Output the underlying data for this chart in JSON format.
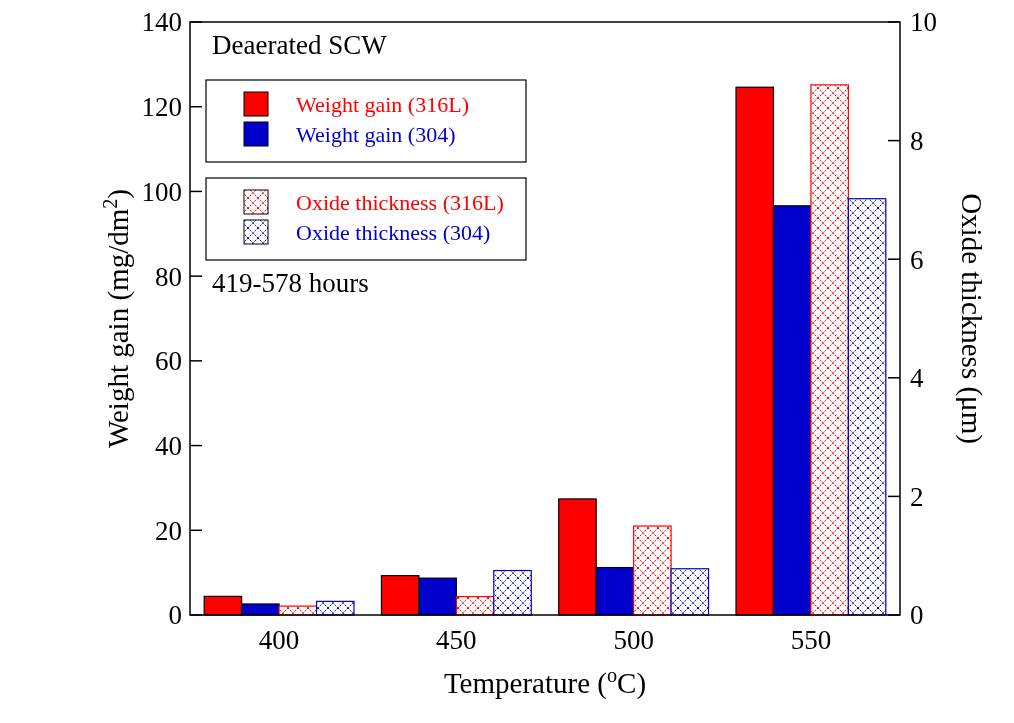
{
  "chart_data": {
    "type": "bar",
    "xlabel": "Temperature ($^{o}$C)",
    "ylabel": "Weight gain (mg/dm$^{2}$)",
    "y2label": "Oxide thickness (μm)",
    "categories": [
      "400",
      "450",
      "500",
      "550"
    ],
    "series": [
      {
        "name": "Weight gain (316L)",
        "color": "#ff0000",
        "values": [
          4.4,
          9.3,
          27.4,
          124.6
        ]
      },
      {
        "name": "Weight gain (304)",
        "color": "#0000cc",
        "values": [
          2.6,
          8.7,
          11.2,
          96.6
        ]
      },
      {
        "name": "Oxide thickness (316L)",
        "color": "#ff0000",
        "axis": "y2",
        "values": [
          0.15,
          0.31,
          1.5,
          8.94
        ]
      },
      {
        "name": "Oxide thickness (304)",
        "color": "#0000cc",
        "axis": "y2",
        "values": [
          0.23,
          0.75,
          0.78,
          7.02
        ]
      }
    ],
    "ylim": [
      0,
      140
    ],
    "yticks": [
      0,
      20,
      40,
      60,
      80,
      100,
      120,
      140
    ],
    "y2lim": [
      0,
      10
    ],
    "y2ticks": [
      0,
      2,
      4,
      6,
      8,
      10
    ],
    "legend": "top left",
    "grid": false,
    "annotations": [
      "Deaerated SCW",
      "419-578 hours"
    ]
  }
}
